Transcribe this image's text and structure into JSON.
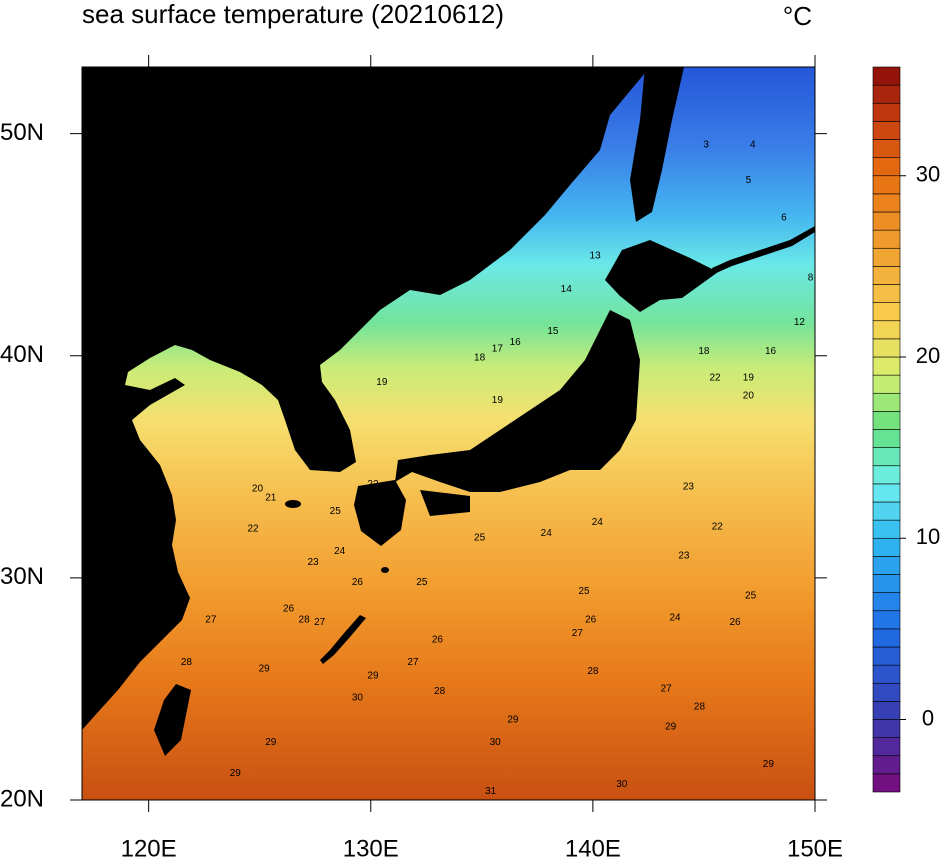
{
  "chart_data": {
    "type": "contour",
    "title": "sea surface temperature (20210612)",
    "units": "°C",
    "xlim": [
      117,
      150
    ],
    "ylim": [
      20,
      53
    ],
    "xticks": [
      {
        "value": 120,
        "label": "120E"
      },
      {
        "value": 130,
        "label": "130E"
      },
      {
        "value": 140,
        "label": "140E"
      },
      {
        "value": 150,
        "label": "150E"
      }
    ],
    "yticks": [
      {
        "value": 20,
        "label": "20N"
      },
      {
        "value": 30,
        "label": "30N"
      },
      {
        "value": 40,
        "label": "40N"
      },
      {
        "value": 50,
        "label": "50N"
      }
    ],
    "clim": [
      -4,
      36
    ],
    "cticks": [
      0,
      10,
      20,
      30
    ],
    "contour_labels": [
      {
        "value": 13,
        "lon": 140.1,
        "lat": 44.5
      },
      {
        "value": 14,
        "lon": 138.8,
        "lat": 43.0
      },
      {
        "value": 15,
        "lon": 138.2,
        "lat": 41.1
      },
      {
        "value": 16,
        "lon": 136.5,
        "lat": 40.6
      },
      {
        "value": 17,
        "lon": 135.7,
        "lat": 40.3
      },
      {
        "value": 18,
        "lon": 134.9,
        "lat": 39.9
      },
      {
        "value": 19,
        "lon": 130.5,
        "lat": 38.8
      },
      {
        "value": 19,
        "lon": 135.7,
        "lat": 38.0
      },
      {
        "value": 20,
        "lon": 124.9,
        "lat": 34.0
      },
      {
        "value": 21,
        "lon": 125.5,
        "lat": 33.6
      },
      {
        "value": 22,
        "lon": 124.7,
        "lat": 32.2
      },
      {
        "value": 23,
        "lon": 127.4,
        "lat": 30.7
      },
      {
        "value": 24,
        "lon": 128.6,
        "lat": 31.2
      },
      {
        "value": 25,
        "lon": 128.4,
        "lat": 33.0
      },
      {
        "value": 22,
        "lon": 130.1,
        "lat": 34.2
      },
      {
        "value": 25,
        "lon": 134.9,
        "lat": 31.8
      },
      {
        "value": 25,
        "lon": 132.3,
        "lat": 29.8
      },
      {
        "value": 26,
        "lon": 129.4,
        "lat": 29.8
      },
      {
        "value": 26,
        "lon": 126.3,
        "lat": 28.6
      },
      {
        "value": 28,
        "lon": 127.0,
        "lat": 28.1
      },
      {
        "value": 27,
        "lon": 127.7,
        "lat": 28.0
      },
      {
        "value": 27,
        "lon": 122.8,
        "lat": 28.1
      },
      {
        "value": 28,
        "lon": 121.7,
        "lat": 26.2
      },
      {
        "value": 29,
        "lon": 125.2,
        "lat": 25.9
      },
      {
        "value": 29,
        "lon": 125.5,
        "lat": 22.6
      },
      {
        "value": 29,
        "lon": 123.9,
        "lat": 21.2
      },
      {
        "value": 30,
        "lon": 129.4,
        "lat": 24.6
      },
      {
        "value": 29,
        "lon": 130.1,
        "lat": 25.6
      },
      {
        "value": 27,
        "lon": 131.9,
        "lat": 26.2
      },
      {
        "value": 28,
        "lon": 133.1,
        "lat": 24.9
      },
      {
        "value": 26,
        "lon": 133.0,
        "lat": 27.2
      },
      {
        "value": 24,
        "lon": 137.9,
        "lat": 32.0
      },
      {
        "value": 24,
        "lon": 140.2,
        "lat": 32.5
      },
      {
        "value": 23,
        "lon": 144.3,
        "lat": 34.1
      },
      {
        "value": 22,
        "lon": 145.6,
        "lat": 32.3
      },
      {
        "value": 23,
        "lon": 144.1,
        "lat": 31.0
      },
      {
        "value": 25,
        "lon": 139.6,
        "lat": 29.4
      },
      {
        "value": 26,
        "lon": 139.9,
        "lat": 28.1
      },
      {
        "value": 27,
        "lon": 139.3,
        "lat": 27.5
      },
      {
        "value": 28,
        "lon": 140.0,
        "lat": 25.8
      },
      {
        "value": 27,
        "lon": 143.3,
        "lat": 25.0
      },
      {
        "value": 28,
        "lon": 144.8,
        "lat": 24.2
      },
      {
        "value": 29,
        "lon": 143.5,
        "lat": 23.3
      },
      {
        "value": 30,
        "lon": 135.6,
        "lat": 22.6
      },
      {
        "value": 29,
        "lon": 136.4,
        "lat": 23.6
      },
      {
        "value": 31,
        "lon": 135.4,
        "lat": 20.4
      },
      {
        "value": 30,
        "lon": 141.3,
        "lat": 20.7
      },
      {
        "value": 29,
        "lon": 147.9,
        "lat": 21.6
      },
      {
        "value": 24,
        "lon": 143.7,
        "lat": 28.2
      },
      {
        "value": 25,
        "lon": 147.1,
        "lat": 29.2
      },
      {
        "value": 26,
        "lon": 146.4,
        "lat": 28.0
      },
      {
        "value": 18,
        "lon": 145.0,
        "lat": 40.2
      },
      {
        "value": 19,
        "lon": 147.0,
        "lat": 39.0
      },
      {
        "value": 20,
        "lon": 147.0,
        "lat": 38.2
      },
      {
        "value": 22,
        "lon": 145.5,
        "lat": 39.0
      },
      {
        "value": 3,
        "lon": 145.1,
        "lat": 49.5
      },
      {
        "value": 4,
        "lon": 147.2,
        "lat": 49.5
      },
      {
        "value": 5,
        "lon": 147.0,
        "lat": 47.9
      },
      {
        "value": 6,
        "lon": 148.6,
        "lat": 46.2
      },
      {
        "value": 8,
        "lon": 149.8,
        "lat": 43.5
      },
      {
        "value": 12,
        "lon": 149.3,
        "lat": 41.5
      },
      {
        "value": 16,
        "lon": 148.0,
        "lat": 40.2
      }
    ]
  }
}
